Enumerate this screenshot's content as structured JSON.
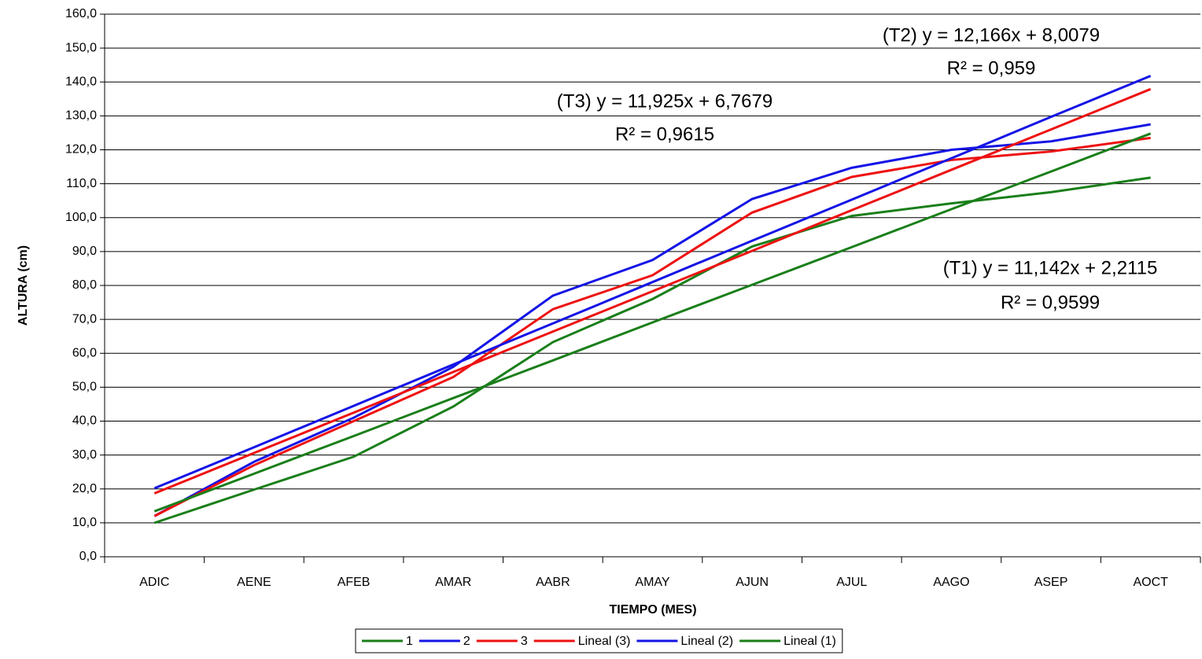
{
  "chart_data": {
    "type": "line",
    "x_label": "TIEMPO (MES)",
    "y_label": "ALTURA (cm)",
    "categories": [
      "ADIC",
      "AENE",
      "AFEB",
      "AMAR",
      "AABR",
      "AMAY",
      "AJUN",
      "AJUL",
      "AAGO",
      "ASEP",
      "AOCT"
    ],
    "series": [
      {
        "name": "1",
        "color": "#1a7f1a",
        "values": [
          10,
          19.8,
          29.5,
          44.3,
          63.3,
          76,
          91.5,
          100.5,
          104.2,
          107.5,
          111.8
        ]
      },
      {
        "name": "2",
        "color": "#1414e6",
        "values": [
          12,
          28,
          41,
          56,
          77,
          87.5,
          105.5,
          114.7,
          120,
          122.5,
          127.5
        ]
      },
      {
        "name": "3",
        "color": "#ee1111",
        "values": [
          12,
          27,
          40,
          53,
          73,
          83,
          101.5,
          112,
          117,
          119.5,
          123.5
        ]
      },
      {
        "name": "Lineal (3)",
        "color": "#ee1111",
        "values": [
          18.7,
          30.6,
          42.5,
          54.5,
          66.4,
          78.3,
          90.2,
          102.2,
          114.1,
          126.0,
          137.9
        ]
      },
      {
        "name": "Lineal (2)",
        "color": "#1414e6",
        "values": [
          20.2,
          32.3,
          44.5,
          56.7,
          68.8,
          81.0,
          93.2,
          105.3,
          117.5,
          129.7,
          141.8
        ]
      },
      {
        "name": "Lineal (1)",
        "color": "#1a7f1a",
        "values": [
          13.4,
          24.5,
          35.6,
          46.8,
          57.9,
          69.1,
          80.2,
          91.3,
          102.5,
          113.6,
          124.8
        ]
      }
    ],
    "annotations": [
      {
        "equation": "(T2) y = 12,166x + 8,0079",
        "r2": "R² = 0,959"
      },
      {
        "equation": "(T3) y = 11,925x + 6,7679",
        "r2": "R² = 0,9615"
      },
      {
        "equation": "(T1) y = 11,142x + 2,2115",
        "r2": "R² = 0,9599"
      }
    ],
    "ylim": [
      0,
      160
    ],
    "yticks": [
      {
        "value": 0,
        "label": "0,0"
      },
      {
        "value": 10,
        "label": "10,0"
      },
      {
        "value": 20,
        "label": "20,0"
      },
      {
        "value": 30,
        "label": "30,0"
      },
      {
        "value": 40,
        "label": "40,0"
      },
      {
        "value": 50,
        "label": "50,0"
      },
      {
        "value": 60,
        "label": "60,0"
      },
      {
        "value": 70,
        "label": "70,0"
      },
      {
        "value": 80,
        "label": "80,0"
      },
      {
        "value": 90,
        "label": "90,0"
      },
      {
        "value": 100,
        "label": "100,0"
      },
      {
        "value": 110,
        "label": "110,0"
      },
      {
        "value": 120,
        "label": "120,0"
      },
      {
        "value": 130,
        "label": "130,0"
      },
      {
        "value": 140,
        "label": "140,0"
      },
      {
        "value": 150,
        "label": "150,0"
      },
      {
        "value": 160,
        "label": "160,0"
      }
    ],
    "grid": true,
    "legend": "bottom"
  }
}
